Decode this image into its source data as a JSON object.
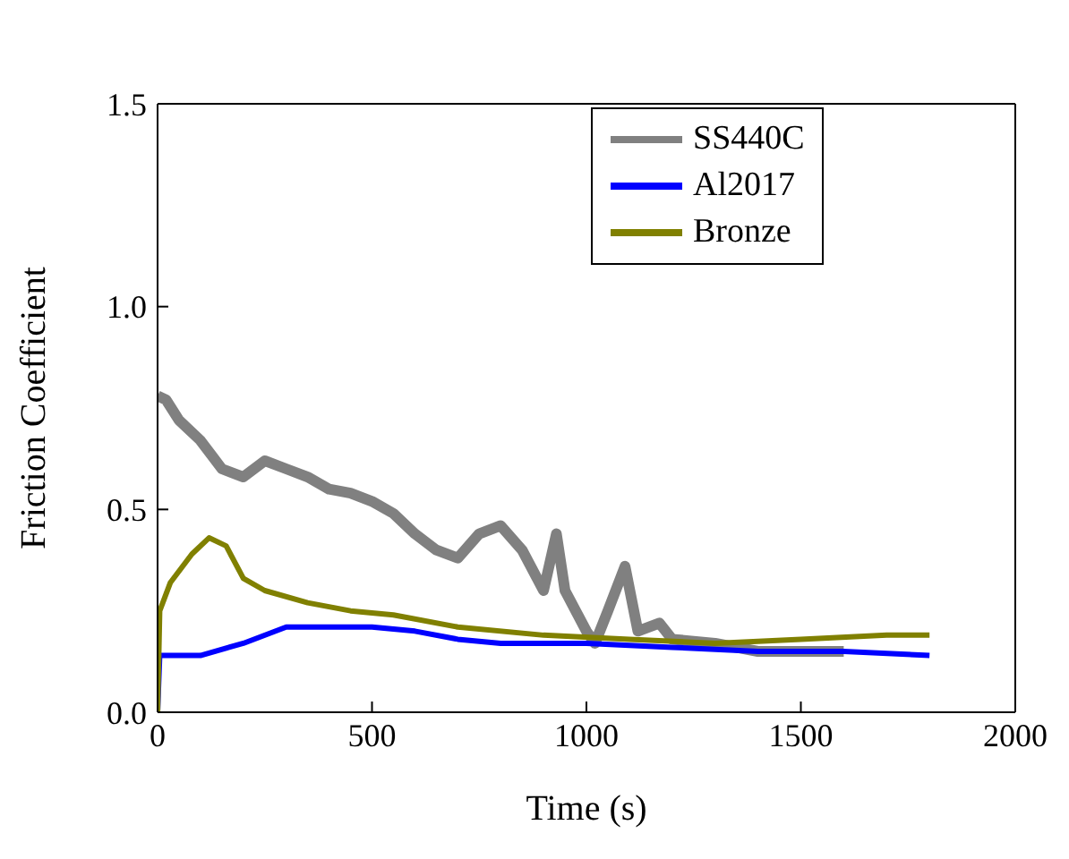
{
  "chart_data": {
    "type": "line",
    "xlabel": "Time (s)",
    "ylabel": "Friction Coefficient",
    "xlim": [
      0,
      2000
    ],
    "xticks": [
      0,
      500,
      1000,
      1500,
      2000
    ],
    "ylim": [
      0,
      1.5
    ],
    "yticks": [
      {
        "value": 0,
        "label": "0.0"
      },
      {
        "value": 0.5,
        "label": "0.5"
      },
      {
        "value": 1,
        "label": "1.0"
      },
      {
        "value": 1.5,
        "label": "1.5"
      }
    ],
    "grid": false,
    "legend": "top right",
    "marker": "none",
    "line_style": "solid",
    "series": [
      {
        "name": "SS440C",
        "color": "#808080",
        "x": [
          0,
          20,
          50,
          100,
          150,
          200,
          250,
          300,
          350,
          400,
          450,
          500,
          550,
          600,
          650,
          700,
          750,
          800,
          850,
          900,
          930,
          950,
          1000,
          1020,
          1050,
          1090,
          1120,
          1170,
          1200,
          1300,
          1400,
          1500,
          1600
        ],
        "values": [
          0.78,
          0.77,
          0.72,
          0.67,
          0.6,
          0.58,
          0.62,
          0.6,
          0.58,
          0.55,
          0.54,
          0.52,
          0.49,
          0.44,
          0.4,
          0.38,
          0.44,
          0.46,
          0.4,
          0.3,
          0.44,
          0.3,
          0.2,
          0.17,
          0.25,
          0.36,
          0.2,
          0.22,
          0.18,
          0.17,
          0.15,
          0.15,
          0.15
        ]
      },
      {
        "name": "Al2017",
        "color": "#0000ff",
        "x": [
          0,
          5,
          100,
          200,
          300,
          400,
          500,
          600,
          700,
          800,
          1000,
          1200,
          1400,
          1600,
          1800
        ],
        "values": [
          0,
          0.14,
          0.14,
          0.17,
          0.21,
          0.21,
          0.21,
          0.2,
          0.18,
          0.17,
          0.17,
          0.16,
          0.15,
          0.15,
          0.14
        ]
      },
      {
        "name": "Bronze",
        "color": "#808000",
        "x": [
          0,
          5,
          30,
          80,
          120,
          160,
          200,
          250,
          350,
          450,
          550,
          700,
          900,
          1100,
          1300,
          1500,
          1700,
          1800
        ],
        "values": [
          0,
          0.25,
          0.32,
          0.39,
          0.43,
          0.41,
          0.33,
          0.3,
          0.27,
          0.25,
          0.24,
          0.21,
          0.19,
          0.18,
          0.17,
          0.18,
          0.19,
          0.19
        ]
      }
    ]
  }
}
